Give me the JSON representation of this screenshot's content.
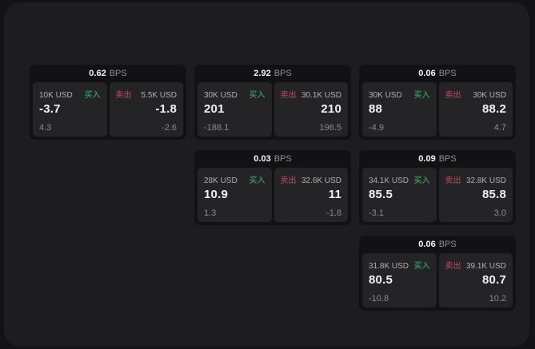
{
  "labels": {
    "buy": "买入",
    "sell": "卖出",
    "bps_unit": "BPS"
  },
  "colors": {
    "buy": "#3eb872",
    "sell": "#c7495e",
    "panel_bg": "#1d1d1f",
    "card_bg": "#121214",
    "tile_bg": "#242427"
  },
  "cards": [
    {
      "row": 1,
      "col": 1,
      "bps": "0.62",
      "buy": {
        "size": "10K USD",
        "value": "-3.7",
        "change": "4.3"
      },
      "sell": {
        "size": "5.5K USD",
        "value": "-1.8",
        "change": "-2.6"
      }
    },
    {
      "row": 1,
      "col": 2,
      "bps": "2.92",
      "buy": {
        "size": "30K USD",
        "value": "201",
        "change": "-188.1"
      },
      "sell": {
        "size": "30.1K USD",
        "value": "210",
        "change": "196.5"
      }
    },
    {
      "row": 1,
      "col": 3,
      "bps": "0.06",
      "buy": {
        "size": "30K USD",
        "value": "88",
        "change": "-4.9"
      },
      "sell": {
        "size": "30K USD",
        "value": "88.2",
        "change": "4.7"
      }
    },
    {
      "row": 2,
      "col": 2,
      "bps": "0.03",
      "buy": {
        "size": "28K USD",
        "value": "10.9",
        "change": "1.3"
      },
      "sell": {
        "size": "32.6K USD",
        "value": "11",
        "change": "-1.8"
      }
    },
    {
      "row": 2,
      "col": 3,
      "bps": "0.09",
      "buy": {
        "size": "34.1K USD",
        "value": "85.5",
        "change": "-3.1"
      },
      "sell": {
        "size": "32.8K USD",
        "value": "85.8",
        "change": "3.0"
      }
    },
    {
      "row": 3,
      "col": 3,
      "bps": "0.06",
      "buy": {
        "size": "31.8K USD",
        "value": "80.5",
        "change": "-10.8"
      },
      "sell": {
        "size": "39.1K USD",
        "value": "80.7",
        "change": "10.2"
      }
    }
  ]
}
